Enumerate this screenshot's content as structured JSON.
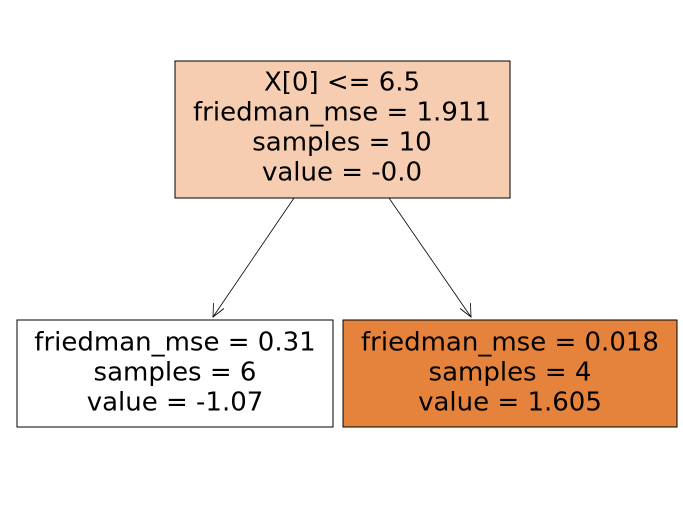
{
  "nodes": [
    {
      "lines": [
        "X[0] <= 6.5",
        "friedman_mse = 1.911",
        "samples = 10",
        "value = -0.0"
      ]
    },
    {
      "lines": [
        "friedman_mse = 0.31",
        "samples = 6",
        "value = -1.07"
      ]
    },
    {
      "lines": [
        "friedman_mse = 0.018",
        "samples = 4",
        "value = 1.605"
      ]
    }
  ]
}
